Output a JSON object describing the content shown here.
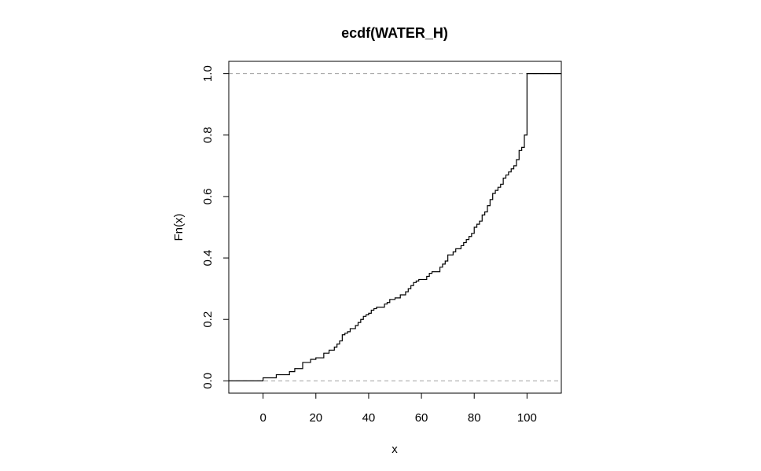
{
  "chart_data": {
    "type": "line",
    "subtype": "ecdf-step",
    "title": "ecdf(WATER_H)",
    "xlabel": "x",
    "ylabel": "Fn(x)",
    "xlim": [
      -13,
      113
    ],
    "ylim": [
      -0.04,
      1.04
    ],
    "x_ticks": [
      0,
      20,
      40,
      60,
      80,
      100
    ],
    "x_tick_labels": [
      "0",
      "20",
      "40",
      "60",
      "80",
      "100"
    ],
    "y_ticks": [
      0.0,
      0.2,
      0.4,
      0.6,
      0.8,
      1.0
    ],
    "y_tick_labels": [
      "0.0",
      "0.2",
      "0.4",
      "0.6",
      "0.8",
      "1.0"
    ],
    "reference_lines": [
      0,
      1
    ],
    "reference_line_style": "dashed",
    "grid": false,
    "legend": "none",
    "line_color": "#000000",
    "reference_line_color": "#a0a0a0",
    "series": [
      {
        "x": [
          0,
          5,
          10,
          12,
          15,
          18,
          20,
          23,
          25,
          27,
          28,
          29,
          30,
          31,
          32,
          33,
          35,
          36,
          37,
          38,
          39,
          40,
          41,
          42,
          43,
          46,
          47,
          48,
          50,
          52,
          54,
          55,
          56,
          57,
          58,
          59,
          62,
          63,
          64,
          67,
          68,
          69,
          70,
          72,
          73,
          75,
          76,
          77,
          78,
          79,
          80,
          81,
          82,
          83,
          84,
          85,
          86,
          87,
          88,
          89,
          90,
          91,
          92,
          93,
          94,
          95,
          96,
          97,
          98,
          99,
          100
        ],
        "y": [
          0.01,
          0.02,
          0.03,
          0.04,
          0.06,
          0.07,
          0.075,
          0.09,
          0.1,
          0.11,
          0.12,
          0.13,
          0.15,
          0.155,
          0.16,
          0.17,
          0.18,
          0.19,
          0.2,
          0.21,
          0.215,
          0.22,
          0.23,
          0.235,
          0.24,
          0.25,
          0.255,
          0.265,
          0.27,
          0.28,
          0.29,
          0.3,
          0.31,
          0.32,
          0.325,
          0.33,
          0.34,
          0.35,
          0.355,
          0.37,
          0.38,
          0.39,
          0.41,
          0.42,
          0.43,
          0.44,
          0.45,
          0.46,
          0.47,
          0.48,
          0.5,
          0.51,
          0.52,
          0.54,
          0.55,
          0.57,
          0.59,
          0.61,
          0.62,
          0.63,
          0.64,
          0.66,
          0.67,
          0.68,
          0.69,
          0.7,
          0.72,
          0.75,
          0.76,
          0.8,
          1.0
        ]
      }
    ]
  }
}
